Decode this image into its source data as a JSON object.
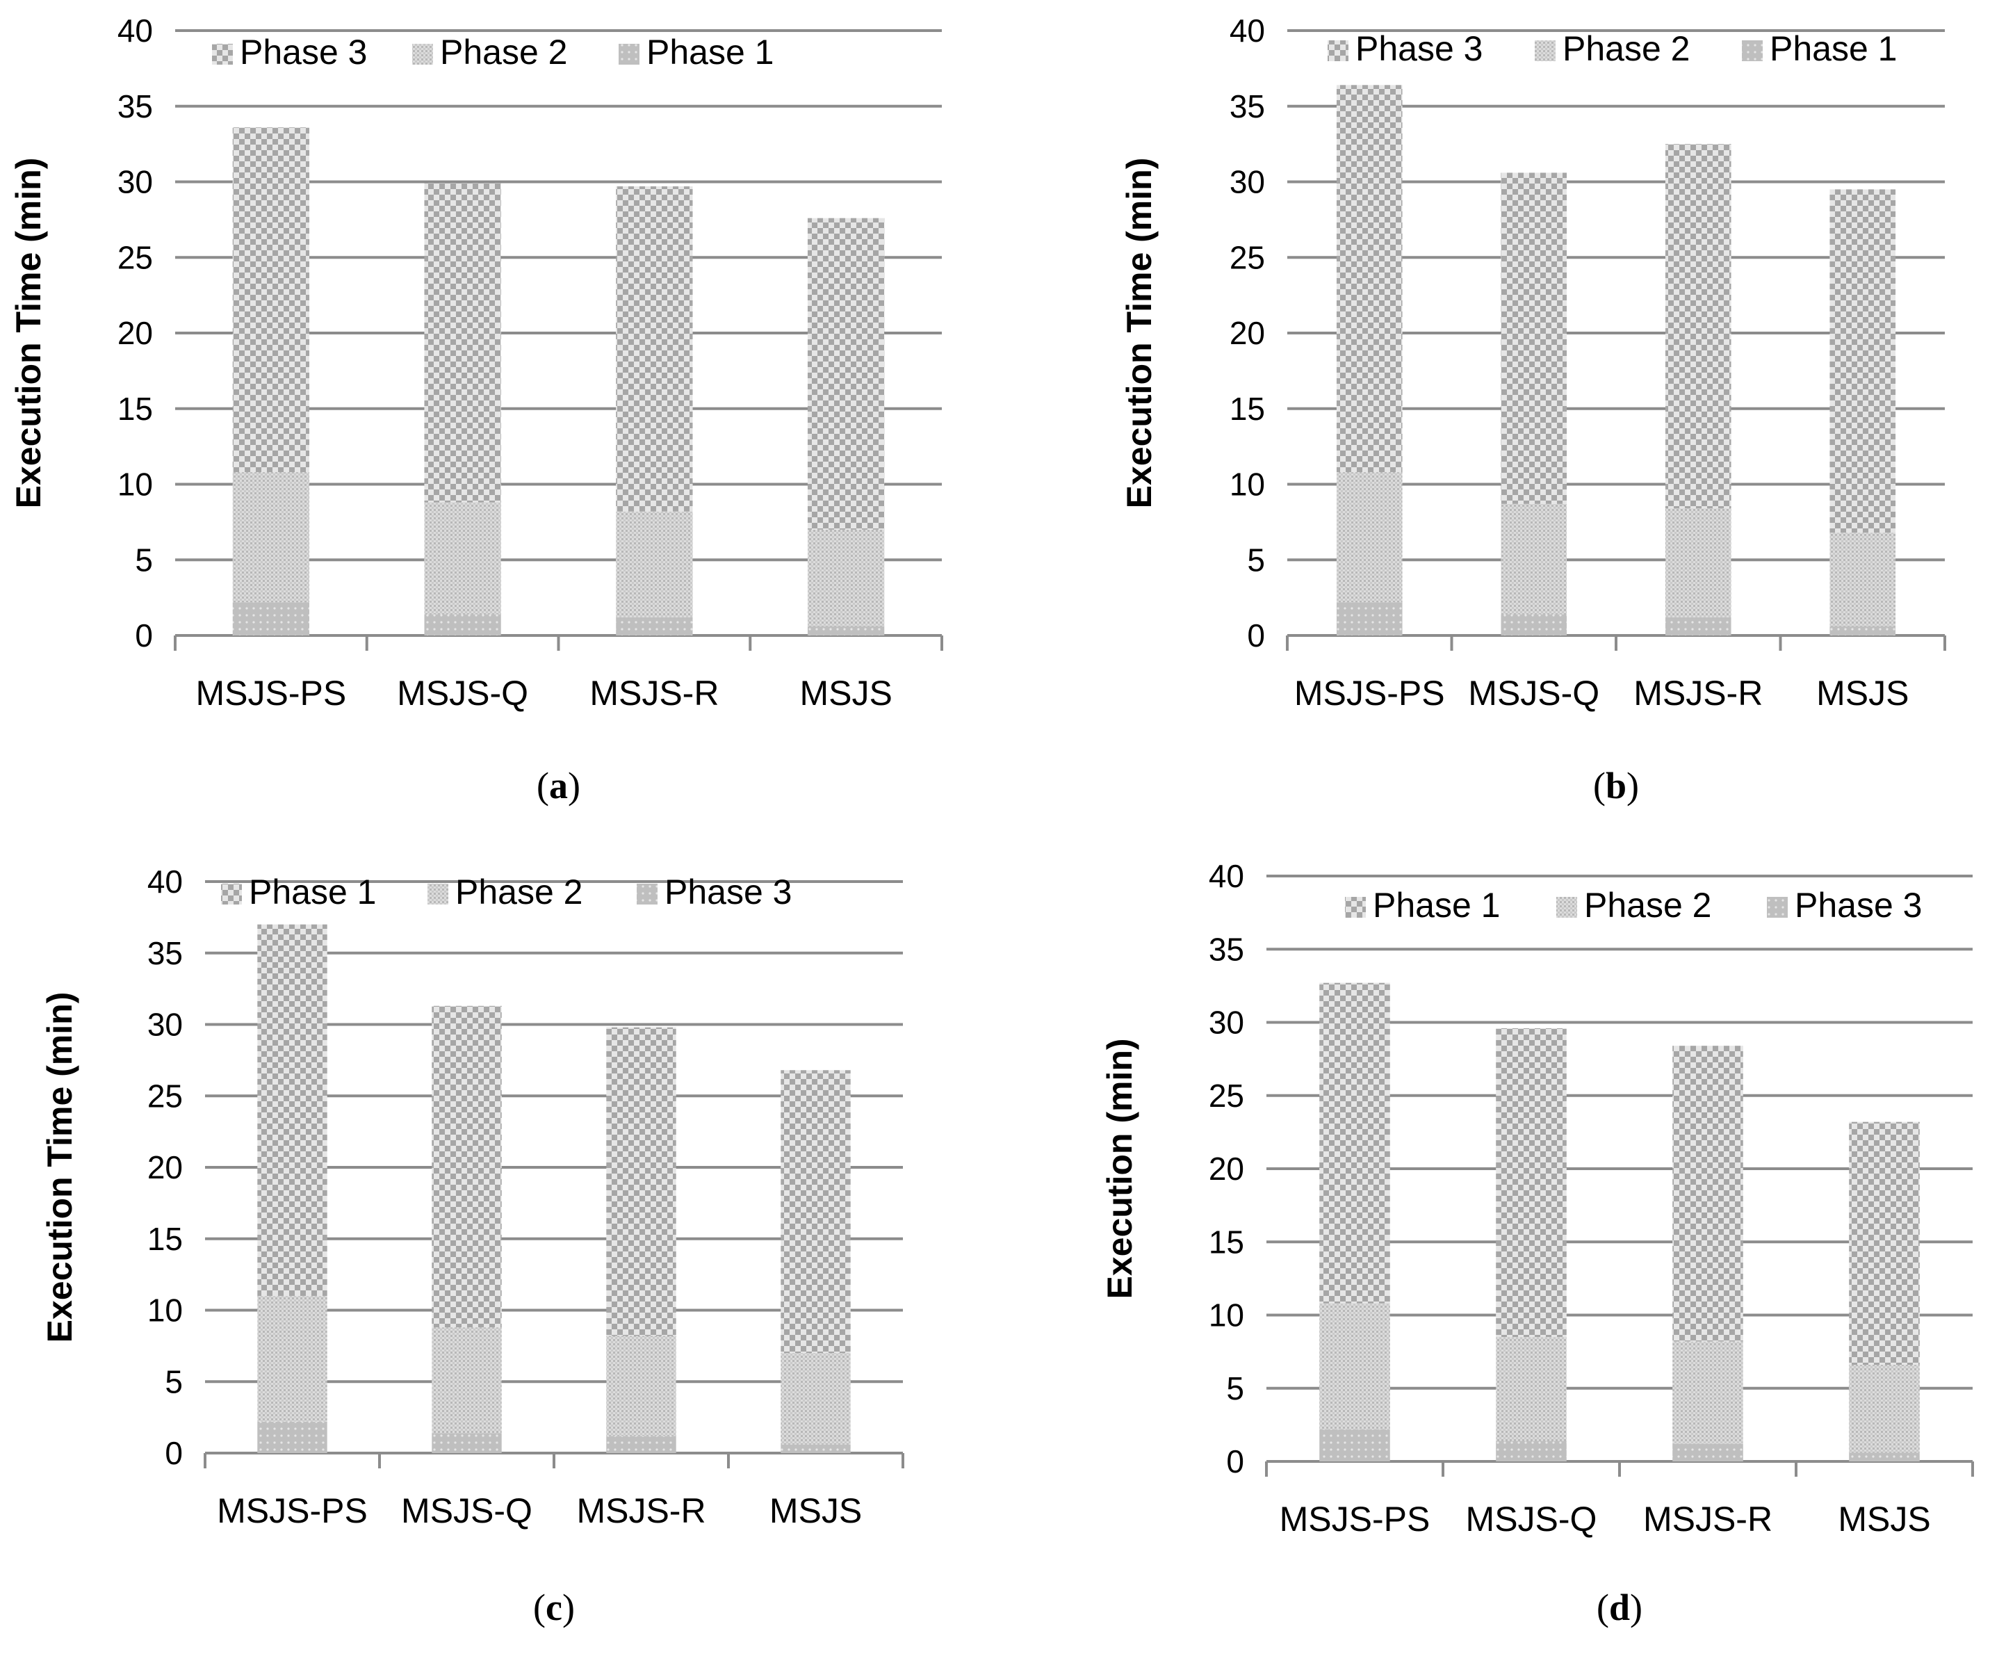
{
  "colors": {
    "gridline": "#8c8c8c",
    "axis": "#8c8c8c",
    "bar_light": "#d9d9d9",
    "bar_dark": "#b3b3b3",
    "text": "#000000"
  },
  "chart_data": [
    {
      "id": "a",
      "type": "bar",
      "stacked": true,
      "caption_letter": "a",
      "ylabel": "Execution Time (min)",
      "ylim": [
        0,
        40
      ],
      "yticks": [
        "0",
        "5",
        "10",
        "15",
        "20",
        "25",
        "30",
        "35",
        "40"
      ],
      "grid": true,
      "legend_position": "top",
      "categories": [
        "MSJS-PS",
        "MSJS-Q",
        "MSJS-R",
        "MSJS"
      ],
      "legend": [
        "Phase 3",
        "Phase 2",
        "Phase 1"
      ],
      "series": [
        {
          "name": "Phase 1",
          "values": [
            2.2,
            1.4,
            1.2,
            0.6
          ]
        },
        {
          "name": "Phase 2",
          "values": [
            8.6,
            7.4,
            7.0,
            6.4
          ]
        },
        {
          "name": "Phase 3",
          "values": [
            22.8,
            21.1,
            21.5,
            20.6
          ]
        }
      ]
    },
    {
      "id": "b",
      "type": "bar",
      "stacked": true,
      "caption_letter": "b",
      "ylabel": "Execution Time (min)",
      "ylim": [
        0,
        40
      ],
      "yticks": [
        "0",
        "5",
        "10",
        "15",
        "20",
        "25",
        "30",
        "35",
        "40"
      ],
      "grid": true,
      "legend_position": "top",
      "categories": [
        "MSJS-PS",
        "MSJS-Q",
        "MSJS-R",
        "MSJS"
      ],
      "legend": [
        "Phase 3",
        "Phase 2",
        "Phase 1"
      ],
      "series": [
        {
          "name": "Phase 1",
          "values": [
            2.2,
            1.4,
            1.2,
            0.6
          ]
        },
        {
          "name": "Phase 2",
          "values": [
            8.6,
            7.3,
            7.2,
            6.2
          ]
        },
        {
          "name": "Phase 3",
          "values": [
            25.6,
            21.9,
            24.1,
            22.7
          ]
        }
      ]
    },
    {
      "id": "c",
      "type": "bar",
      "stacked": true,
      "caption_letter": "c",
      "ylabel": "Execution Time (min)",
      "ylim": [
        0,
        40
      ],
      "yticks": [
        "0",
        "5",
        "10",
        "15",
        "20",
        "25",
        "30",
        "35",
        "40"
      ],
      "grid": true,
      "legend_position": "top",
      "categories": [
        "MSJS-PS",
        "MSJS-Q",
        "MSJS-R",
        "MSJS"
      ],
      "legend": [
        "Phase 1",
        "Phase 2",
        "Phase 3"
      ],
      "series": [
        {
          "name": "Phase 3",
          "values": [
            2.2,
            1.4,
            1.2,
            0.6
          ]
        },
        {
          "name": "Phase 2",
          "values": [
            8.8,
            7.4,
            7.0,
            6.4
          ]
        },
        {
          "name": "Phase 1",
          "values": [
            26.0,
            22.5,
            21.6,
            19.8
          ]
        }
      ]
    },
    {
      "id": "d",
      "type": "bar",
      "stacked": true,
      "caption_letter": "d",
      "ylabel": "Execution (min)",
      "ylim": [
        0,
        40
      ],
      "yticks": [
        "0",
        "5",
        "10",
        "15",
        "20",
        "25",
        "30",
        "35",
        "40"
      ],
      "grid": true,
      "legend_position": "top",
      "categories": [
        "MSJS-PS",
        "MSJS-Q",
        "MSJS-R",
        "MSJS"
      ],
      "legend": [
        "Phase 1",
        "Phase 2",
        "Phase 3"
      ],
      "series": [
        {
          "name": "Phase 3",
          "values": [
            2.2,
            1.4,
            1.2,
            0.6
          ]
        },
        {
          "name": "Phase 2",
          "values": [
            8.6,
            7.1,
            7.0,
            6.0
          ]
        },
        {
          "name": "Phase 1",
          "values": [
            21.9,
            21.1,
            20.2,
            16.6
          ]
        }
      ]
    }
  ]
}
